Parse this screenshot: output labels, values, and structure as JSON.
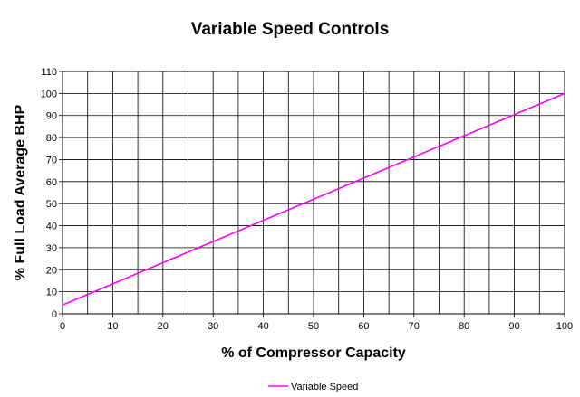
{
  "chart_data": {
    "type": "line",
    "title": "Variable Speed Controls",
    "xlabel": "% of Compressor Capacity",
    "ylabel": "% Full Load Average BHP",
    "xlim": [
      0,
      100
    ],
    "ylim": [
      0,
      110
    ],
    "xticks": [
      0,
      10,
      20,
      30,
      40,
      50,
      60,
      70,
      80,
      90,
      100
    ],
    "yticks": [
      0,
      10,
      20,
      30,
      40,
      50,
      60,
      70,
      80,
      90,
      100,
      110
    ],
    "x_gridlines": [
      0,
      5,
      10,
      15,
      20,
      25,
      30,
      35,
      40,
      45,
      50,
      55,
      60,
      65,
      70,
      75,
      80,
      85,
      90,
      95,
      100
    ],
    "y_gridlines": [
      0,
      10,
      20,
      30,
      40,
      50,
      60,
      70,
      80,
      90,
      100,
      110
    ],
    "grid": true,
    "legend_position": "bottom",
    "series": [
      {
        "name": "Variable Speed",
        "color": "#ff00ff",
        "x": [
          0,
          100
        ],
        "y": [
          4,
          100
        ]
      }
    ]
  }
}
